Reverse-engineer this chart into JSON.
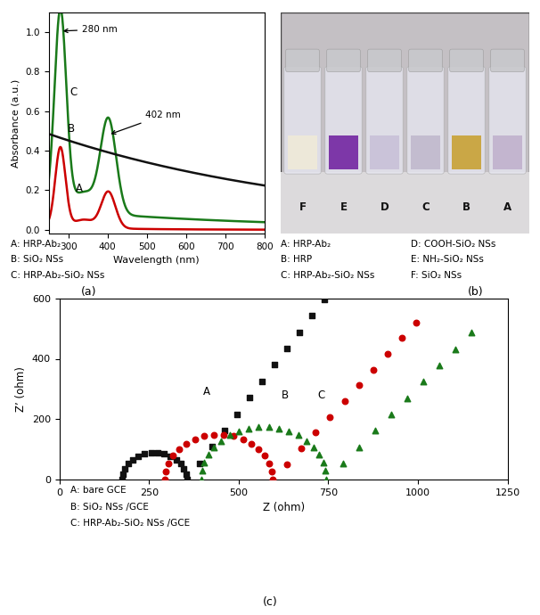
{
  "uv_xlabel": "Wavelength (nm)",
  "uv_ylabel": "Absorbance (a.u.)",
  "uv_annotation_280": "280 nm",
  "uv_annotation_402": "402 nm",
  "uv_legend_A": "A: HRP-Ab₂",
  "uv_legend_B": "B: SiO₂ NSs",
  "uv_legend_C": "C: HRP-Ab₂-SiO₂ NSs",
  "eis_xlabel": "Z (ohm)",
  "eis_ylabel": "Z’ (ohm)",
  "eis_xlim": [
    0,
    1250
  ],
  "eis_ylim": [
    0,
    600
  ],
  "eis_xticks": [
    0,
    250,
    500,
    750,
    1000,
    1250
  ],
  "eis_yticks": [
    0,
    200,
    400,
    600
  ],
  "eis_legend_A": "A: bare GCE",
  "eis_legend_B": "B: SiO₂ NSs /GCE",
  "eis_legend_C": "C: HRP-Ab₂-SiO₂ NSs /GCE",
  "panel_a_label": "(a)",
  "panel_b_label": "(b)",
  "panel_c_label": "(c)",
  "vial_legend_col1_A": "A: HRP-Ab₂",
  "vial_legend_col1_B": "B: HRP",
  "vial_legend_col1_C": "C: HRP-Ab₂-SiO₂ NSs",
  "vial_legend_col2_D": "D: COOH-SiO₂ NSs",
  "vial_legend_col2_E": "E: NH₂-SiO₂ NSs",
  "vial_legend_col2_F": "F: SiO₂ NSs",
  "uv_color_A": "#cc0000",
  "uv_color_B": "#111111",
  "uv_color_C": "#1a7a1a",
  "eis_color_A": "#111111",
  "eis_color_B": "#cc0000",
  "eis_color_C": "#1a7a1a",
  "photo_bg": "#c0bcc0",
  "photo_bottom_bg": "#d8d4d8",
  "vial_fill_F": "#f0ead8",
  "vial_fill_E": "#7020a0",
  "vial_fill_D": "#c8c0d8",
  "vial_fill_C": "#c0b8cc",
  "vial_fill_B": "#c8a030",
  "vial_fill_A": "#c0b0cc"
}
